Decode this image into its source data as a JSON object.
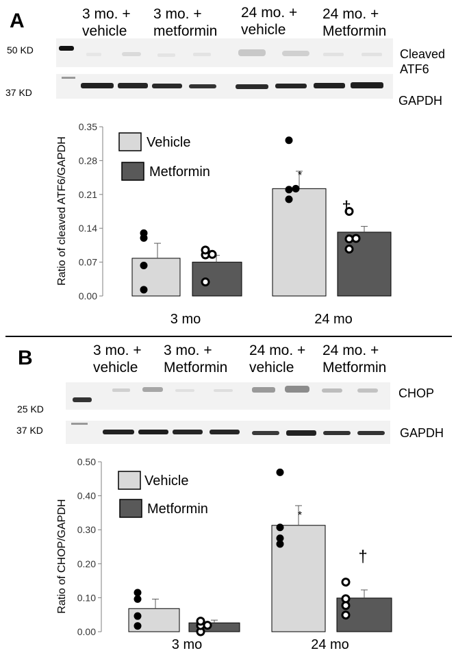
{
  "panel_a": {
    "letter": "A",
    "groups": [
      {
        "line1": "3 mo. +",
        "line2": "vehicle"
      },
      {
        "line1": "3 mo. +",
        "line2": "metformin"
      },
      {
        "line1": "24 mo. +",
        "line2": "vehicle"
      },
      {
        "line1": "24 mo. +",
        "line2": "Metformin"
      }
    ],
    "markers": {
      "top": "50 KD",
      "bottom": "37 KD"
    },
    "blot_labels": {
      "target": "Cleaved ATF6",
      "control": "GAPDH"
    }
  },
  "panel_b": {
    "letter": "B",
    "groups": [
      {
        "line1": "3 mo. +",
        "line2": "vehicle"
      },
      {
        "line1": "3 mo. +",
        "line2": "Metformin"
      },
      {
        "line1": "24 mo. +",
        "line2": "vehicle"
      },
      {
        "line1": "24 mo. +",
        "line2": "Metformin"
      }
    ],
    "markers": {
      "top": "25 KD",
      "bottom": "37 KD"
    },
    "blot_labels": {
      "target": "CHOP",
      "control": "GAPDH"
    }
  },
  "colors": {
    "vehicle": "#d9d9d9",
    "metformin": "#595959",
    "dot_filled": "#000000",
    "dot_open": "#ffffff"
  },
  "chart_data": [
    {
      "type": "bar",
      "ylabel": "Ratio of cleaved ATF6/GAPDH",
      "ylim": [
        0,
        0.35
      ],
      "yticks": [
        "0.00",
        "0.07",
        "0.14",
        "0.21",
        "0.28",
        "0.35"
      ],
      "categories": [
        "3 mo",
        "24 mo"
      ],
      "legend": [
        "Vehicle",
        "Metformin"
      ],
      "series": [
        {
          "name": "Vehicle",
          "values": [
            0.078,
            0.222
          ],
          "errors": [
            0.031,
            0.036
          ],
          "points": [
            [
              0.013,
              0.063,
              0.12,
              0.13
            ],
            [
              0.2,
              0.22,
              0.222,
              0.322
            ]
          ]
        },
        {
          "name": "Metformin",
          "values": [
            0.07,
            0.132
          ],
          "errors": [
            0.014,
            0.012
          ],
          "points": [
            [
              0.029,
              0.085,
              0.086,
              0.095
            ],
            [
              0.097,
              0.118,
              0.119,
              0.175
            ]
          ]
        }
      ],
      "annotations": {
        "star": "*",
        "dagger": "†"
      }
    },
    {
      "type": "bar",
      "ylabel": "Ratio of CHOP/GAPDH",
      "ylim": [
        0,
        0.5
      ],
      "yticks": [
        "0.00",
        "0.10",
        "0.20",
        "0.30",
        "0.40",
        "0.50"
      ],
      "categories": [
        "3 mo",
        "24 mo"
      ],
      "legend": [
        "Vehicle",
        "Metformin"
      ],
      "series": [
        {
          "name": "Vehicle",
          "values": [
            0.068,
            0.313
          ],
          "errors": [
            0.028,
            0.058
          ],
          "points": [
            [
              0.017,
              0.046,
              0.096,
              0.115
            ],
            [
              0.258,
              0.275,
              0.307,
              0.469
            ]
          ]
        },
        {
          "name": "Metformin",
          "values": [
            0.026,
            0.099
          ],
          "errors": [
            0.008,
            0.024
          ],
          "points": [
            [
              0.0,
              0.018,
              0.019,
              0.031
            ],
            [
              0.049,
              0.077,
              0.097,
              0.146
            ]
          ]
        }
      ],
      "annotations": {
        "star": "*",
        "dagger": "†"
      }
    }
  ]
}
